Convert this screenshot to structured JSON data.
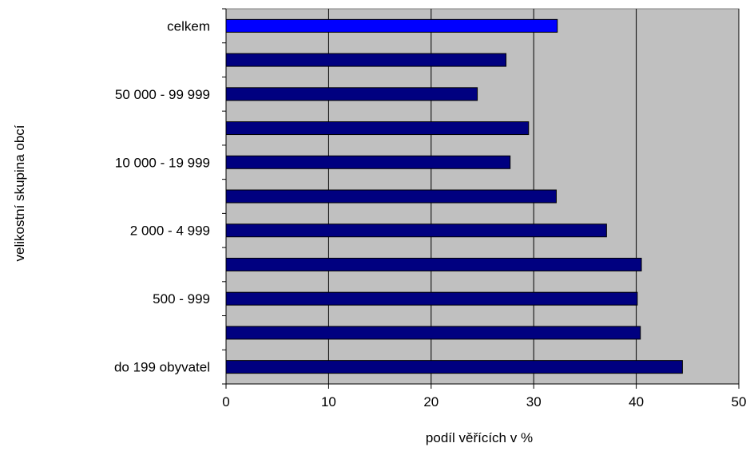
{
  "chart_data": {
    "type": "bar",
    "orientation": "horizontal",
    "title": "",
    "xlabel": "podíl věřících v %",
    "ylabel": "velikostní skupina obcí",
    "xlim": [
      0,
      50
    ],
    "x_ticks": [
      "0",
      "10",
      "20",
      "30",
      "40",
      "50"
    ],
    "grid": "vertical",
    "categories": [
      "do 199 obyvatel",
      "",
      "500 - 999",
      "",
      "2 000 - 4 999",
      "",
      "10 000 - 19 999",
      "",
      "50 000 - 99 999",
      "",
      "celkem"
    ],
    "values": [
      44.5,
      40.4,
      40.1,
      40.5,
      37.1,
      32.2,
      27.7,
      29.5,
      24.5,
      27.3,
      32.3
    ],
    "colors": {
      "bar": "#000080",
      "highlight": "#0000ff",
      "plot_background": "#c0c0c0",
      "gridline": "#000000"
    },
    "highlight_category_index": 10
  }
}
